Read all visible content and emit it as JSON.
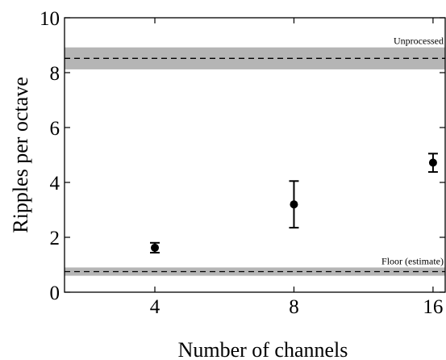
{
  "chart_data": {
    "type": "scatter",
    "title": "",
    "xlabel": "Number of channels",
    "ylabel": "Ripples per octave",
    "x_scale": "log2",
    "xlim": [
      2.55,
      17
    ],
    "ylim": [
      0,
      10
    ],
    "x_ticks": [
      4,
      8,
      16
    ],
    "x_tick_labels": [
      "4",
      "8",
      "16"
    ],
    "y_ticks": [
      0,
      2,
      4,
      6,
      8,
      10
    ],
    "y_tick_labels": [
      "0",
      "2",
      "4",
      "6",
      "8",
      "10"
    ],
    "grid": false,
    "legend": "none",
    "series": [
      {
        "x": [
          4,
          8,
          16
        ],
        "y": [
          1.62,
          3.2,
          4.72
        ],
        "y_lower": [
          1.44,
          2.35,
          4.38
        ],
        "y_upper": [
          1.8,
          4.05,
          5.05
        ],
        "marker": "filled-circle",
        "color": "#000000"
      }
    ],
    "reference_bands": [
      {
        "label": "Unprocessed",
        "value": 8.52,
        "band": [
          8.12,
          8.92
        ],
        "line_style": "dashed",
        "band_color": "#b5b5b5"
      },
      {
        "label": "Floor (estimate)",
        "value": 0.75,
        "band": [
          0.6,
          0.9
        ],
        "line_style": "dashed",
        "band_color": "#b5b5b5"
      }
    ]
  }
}
